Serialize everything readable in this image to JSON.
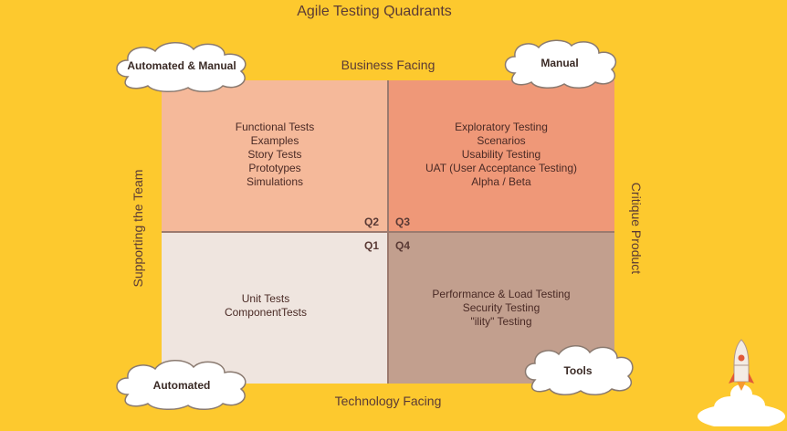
{
  "title": "Agile Testing Quadrants",
  "axes": {
    "top": "Business Facing",
    "bottom": "Technology Facing",
    "left": "Supporting the Team",
    "right": "Critique Product"
  },
  "quadrants": {
    "q2": {
      "id": "Q2",
      "items": [
        "Functional Tests",
        "Examples",
        "Story Tests",
        "Prototypes",
        "Simulations"
      ]
    },
    "q3": {
      "id": "Q3",
      "items": [
        "Exploratory Testing",
        "Scenarios",
        "Usability Testing",
        "UAT (User Acceptance Testing)",
        "Alpha / Beta"
      ]
    },
    "q1": {
      "id": "Q1",
      "items": [
        "Unit Tests",
        "ComponentTests"
      ]
    },
    "q4": {
      "id": "Q4",
      "items": [
        "Performance & Load Testing",
        "Security Testing",
        "\"ility\" Testing"
      ]
    }
  },
  "clouds": {
    "automated_manual": "Automated & Manual",
    "manual": "Manual",
    "automated": "Automated",
    "tools": "Tools"
  },
  "colors": {
    "background": "#fdc92e",
    "q2": "#f5b99a",
    "q3": "#ef9878",
    "q1": "#efe5df",
    "q4": "#c29f8e"
  }
}
